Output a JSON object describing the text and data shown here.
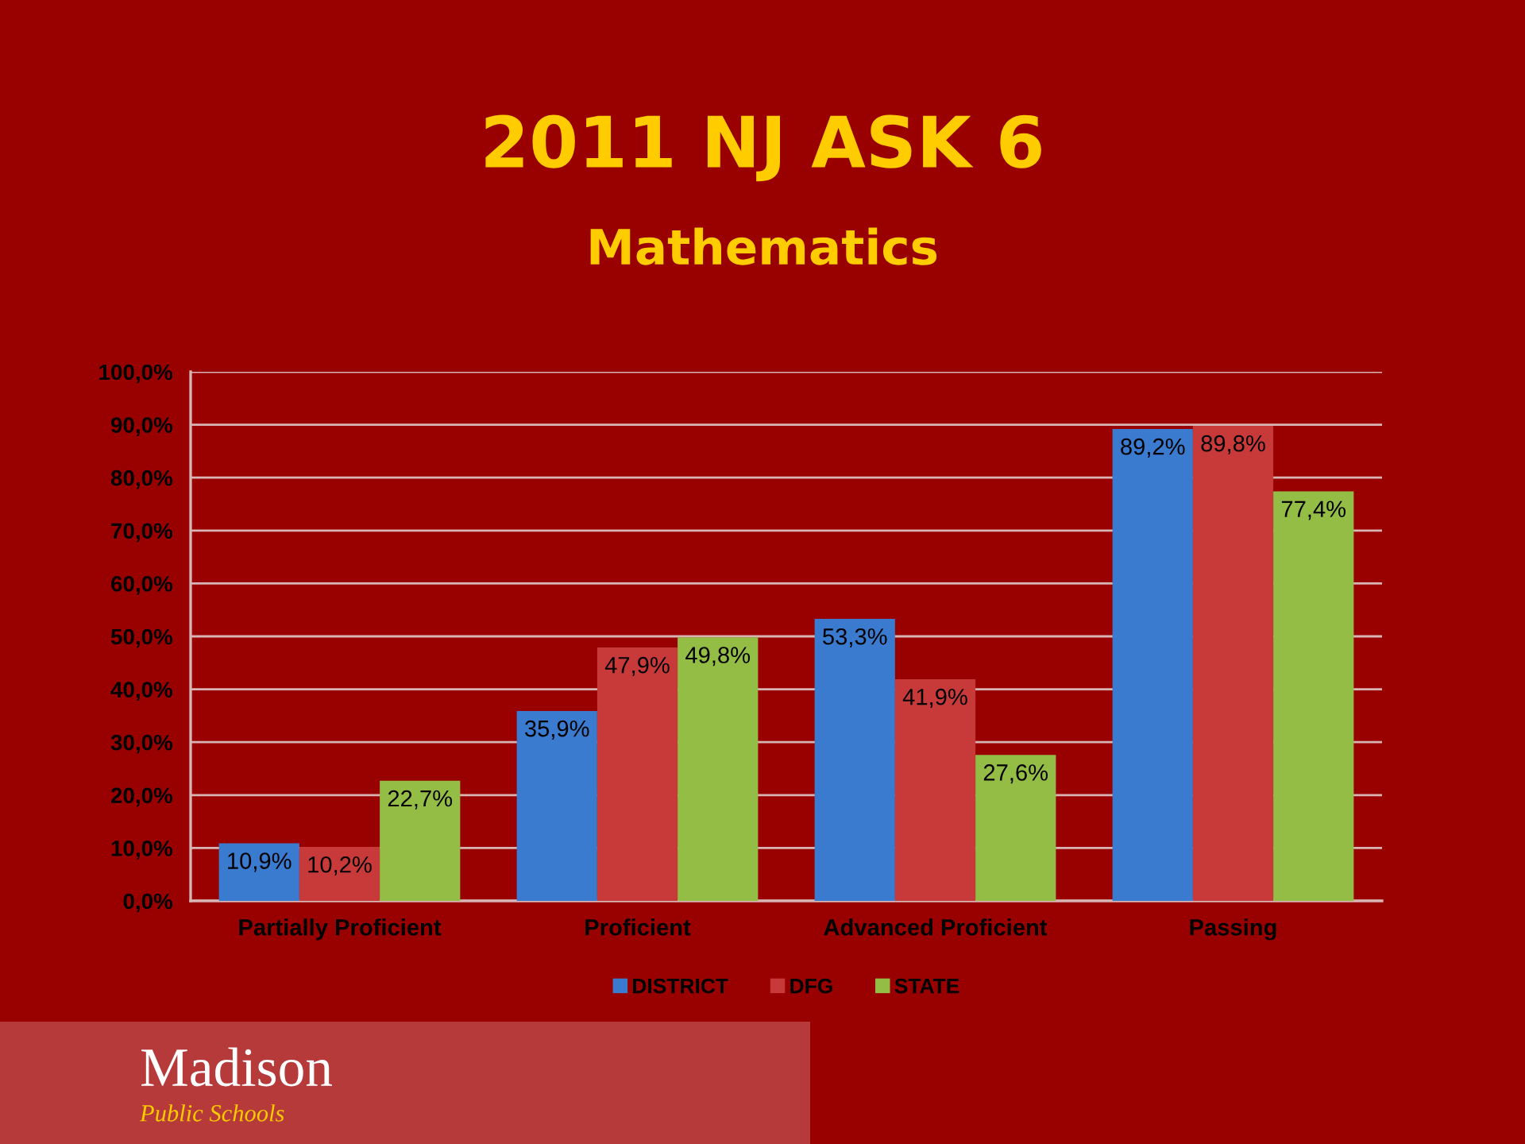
{
  "chart_data": {
    "type": "bar",
    "title": "2011 NJ ASK 6",
    "subtitle": "Mathematics",
    "categories": [
      "Partially Proficient",
      "Proficient",
      "Advanced Proficient",
      "Passing"
    ],
    "series": [
      {
        "name": "DISTRICT",
        "color": "#3a7bd0",
        "values": [
          10.9,
          35.9,
          53.3,
          89.2
        ],
        "value_labels": [
          "10,9%",
          "35,9%",
          "53,3%",
          "89,2%"
        ]
      },
      {
        "name": "DFG",
        "color": "#c83a3a",
        "values": [
          10.2,
          47.9,
          41.9,
          89.8
        ],
        "value_labels": [
          "10,2%",
          "47,9%",
          "41,9%",
          "89,8%"
        ]
      },
      {
        "name": "STATE",
        "color": "#93bd45",
        "values": [
          22.7,
          49.8,
          27.6,
          77.4
        ],
        "value_labels": [
          "22,7%",
          "49,8%",
          "27,6%",
          "77,4%"
        ]
      }
    ],
    "ylim": [
      0,
      100
    ],
    "yticks": [
      {
        "value": 0,
        "label": "0,0%"
      },
      {
        "value": 10,
        "label": "10,0%"
      },
      {
        "value": 20,
        "label": "20,0%"
      },
      {
        "value": 30,
        "label": "30,0%"
      },
      {
        "value": 40,
        "label": "40,0%"
      },
      {
        "value": 50,
        "label": "50,0%"
      },
      {
        "value": 60,
        "label": "60,0%"
      },
      {
        "value": 70,
        "label": "70,0%"
      },
      {
        "value": 80,
        "label": "80,0%"
      },
      {
        "value": 90,
        "label": "90,0%"
      },
      {
        "value": 100,
        "label": "100,0%"
      }
    ],
    "grid": "y",
    "legend": "bottom",
    "annotations": [
      "Madison",
      "Public Schools"
    ]
  }
}
